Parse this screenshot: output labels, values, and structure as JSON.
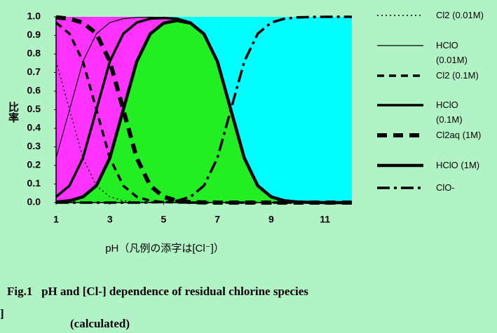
{
  "chart_data": {
    "type": "line",
    "y_label": "比率",
    "x_label": "pH（凡例の添字は[Cl⁻]）",
    "caption": [
      "Fig.1   pH and [Cl-] dependence of residual chlorine species",
      "(calculated)"
    ],
    "fragment": "]",
    "x": [
      1,
      1.5,
      2,
      2.5,
      3,
      3.5,
      4,
      4.5,
      5,
      5.5,
      6,
      6.5,
      7,
      7.5,
      8,
      8.5,
      9,
      9.5,
      10,
      10.5,
      11,
      11.5,
      12
    ],
    "xlim": [
      1,
      12
    ],
    "xticks": [
      1,
      3,
      5,
      7,
      9,
      11
    ],
    "ylim": [
      0,
      1
    ],
    "yticks": [
      {
        "value": 0,
        "label": "0.0"
      },
      0.1,
      0.2,
      0.3,
      0.4,
      0.5,
      0.6,
      0.7,
      0.8,
      0.9,
      {
        "value": 1,
        "label": "1.0"
      }
    ],
    "plot_color": "#00ffff",
    "series": [
      {
        "name": "Cl2 (0.01M)",
        "color": "#000000",
        "values": [
          0.76,
          0.5,
          0.24,
          0.091,
          0.031,
          0.01,
          0.003,
          0.001,
          0,
          0,
          0,
          0,
          0,
          0,
          0,
          0,
          0,
          0,
          0,
          0,
          0,
          0,
          0
        ]
      },
      {
        "name": "HClO (0.01M)",
        "color": "#000000",
        "values": [
          0.24,
          0.5,
          0.76,
          0.909,
          0.969,
          0.99,
          0.997,
          0.998,
          0.997,
          0.99,
          0.969,
          0.909,
          0.76,
          0.5,
          0.24,
          0.091,
          0.031,
          0.01,
          0.003,
          0.001,
          0,
          0,
          0
        ]
      },
      {
        "name": "Cl2 (0.1M)",
        "color": "#000000",
        "values": [
          0.969,
          0.909,
          0.76,
          0.5,
          0.24,
          0.091,
          0.031,
          0.01,
          0.003,
          0.001,
          0,
          0,
          0,
          0,
          0,
          0,
          0,
          0,
          0,
          0,
          0,
          0,
          0
        ]
      },
      {
        "name": "HClO (0.1M)",
        "color": "#000000",
        "values": [
          0.031,
          0.091,
          0.24,
          0.5,
          0.76,
          0.909,
          0.969,
          0.99,
          0.994,
          0.99,
          0.969,
          0.909,
          0.76,
          0.5,
          0.24,
          0.091,
          0.031,
          0.01,
          0.003,
          0.001,
          0,
          0,
          0
        ]
      },
      {
        "name": "Cl2aq (1M)",
        "color": "#000000",
        "fill": "#ff33ff",
        "values": [
          0.997,
          0.99,
          0.969,
          0.909,
          0.76,
          0.5,
          0.24,
          0.091,
          0.031,
          0.01,
          0.003,
          0.001,
          0,
          0,
          0,
          0,
          0,
          0,
          0,
          0,
          0,
          0,
          0
        ]
      },
      {
        "name": "HClO (1M)",
        "color": "#000000",
        "fill": "#22ee22",
        "values": [
          0.003,
          0.01,
          0.031,
          0.091,
          0.24,
          0.5,
          0.759,
          0.908,
          0.966,
          0.98,
          0.966,
          0.908,
          0.76,
          0.5,
          0.24,
          0.091,
          0.031,
          0.01,
          0.003,
          0.001,
          0,
          0,
          0
        ]
      },
      {
        "name": "ClO-",
        "color": "#000000",
        "values": [
          0,
          0,
          0,
          0,
          0,
          0,
          0,
          0.001,
          0.003,
          0.01,
          0.031,
          0.091,
          0.24,
          0.5,
          0.76,
          0.909,
          0.969,
          0.99,
          0.997,
          0.999,
          1,
          1,
          1
        ]
      }
    ]
  }
}
